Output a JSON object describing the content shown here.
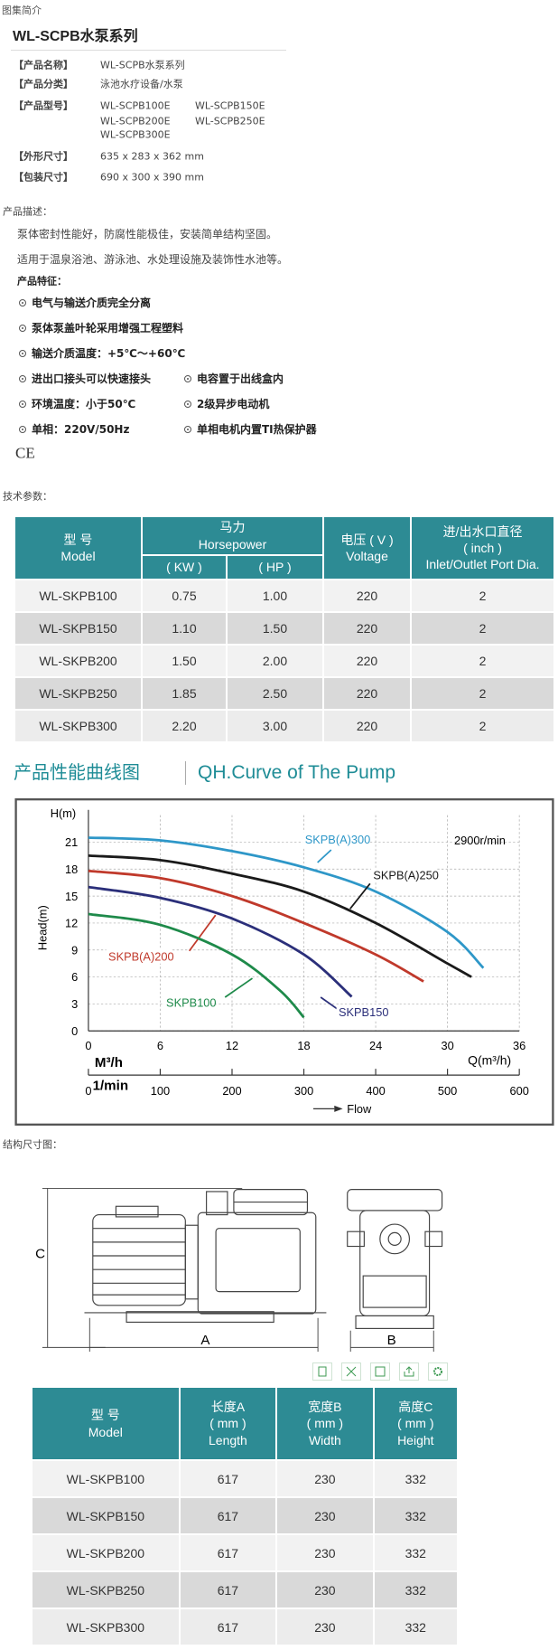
{
  "header": {
    "breadcrumb": "图集简介",
    "title": "WL-SCPB水泵系列"
  },
  "specs": [
    {
      "label": "【产品名称】",
      "values": [
        "WL-SCPB水泵系列"
      ]
    },
    {
      "label": "【产品分类】",
      "values": [
        "泳池水疗设备/水泵"
      ]
    },
    {
      "label": "【产品型号】",
      "values": [
        "WL-SCPB100E",
        "WL-SCPB150E",
        "WL-SCPB200E",
        "WL-SCPB250E",
        "WL-SCPB300E"
      ]
    },
    {
      "label": "【外形尺寸】",
      "values": [
        "635 x 283 x 362 mm"
      ]
    },
    {
      "label": "【包装尺寸】",
      "values": [
        "690 x 300 x 390 mm"
      ]
    }
  ],
  "description": {
    "title": "产品描述：",
    "lines": [
      "泵体密封性能好，防腐性能极佳，安装简单结构坚固。",
      "适用于温泉浴池、游泳池、水处理设施及装饰性水池等。"
    ]
  },
  "features": {
    "title": "产品特征：",
    "items": [
      "电气与输送介质完全分离",
      "泵体泵盖叶轮采用增强工程塑料",
      "输送介质温度：+5℃～+60℃",
      "进出口接头可以快速接头",
      "电容置于出线盒内",
      "环境温度：小于50℃",
      "2级异步电动机",
      "单相：220V/50Hz",
      "单相电机内置TI热保护器"
    ],
    "cert": "CE"
  },
  "tech_params": {
    "title": "技术参数：",
    "header": {
      "model": [
        "型 号",
        "Model"
      ],
      "power": [
        "马力",
        "Horsepower"
      ],
      "kw": "( KW )",
      "hp": "( HP )",
      "voltage": [
        "电压 ( V )",
        "Voltage"
      ],
      "port": [
        "进/出水口直径",
        "( inch )",
        "Inlet/Outlet Port Dia."
      ]
    },
    "rows": [
      [
        "WL-SKPB100",
        "0.75",
        "1.00",
        "220",
        "2"
      ],
      [
        "WL-SKPB150",
        "1.10",
        "1.50",
        "220",
        "2"
      ],
      [
        "WL-SKPB200",
        "1.50",
        "2.00",
        "220",
        "2"
      ],
      [
        "WL-SKPB250",
        "1.85",
        "2.50",
        "220",
        "2"
      ],
      [
        "WL-SKPB300",
        "2.20",
        "3.00",
        "220",
        "2"
      ]
    ]
  },
  "curve": {
    "title": "产品性能曲线图",
    "subtitle": "QH.Curve of The Pump"
  },
  "chart_data": {
    "type": "line",
    "y_label": "H(m)",
    "y_title": "Head(m)",
    "x_label": "Q(m³/h)",
    "x_unit": "M³/h",
    "x2_unit": "1/min",
    "x2_title": "Flow",
    "annotation": "2900r/min",
    "xlim": [
      0,
      36
    ],
    "xticks": [
      0,
      6,
      12,
      18,
      24,
      30,
      36
    ],
    "ylim": [
      0,
      24
    ],
    "yticks": [
      0,
      3,
      6,
      9,
      12,
      15,
      18,
      21
    ],
    "x2lim": [
      0,
      600
    ],
    "x2ticks": [
      0,
      100,
      200,
      300,
      400,
      500,
      600
    ],
    "grid": true,
    "series": [
      {
        "name": "SKPB(A)300",
        "color": "#2e97c8",
        "x": [
          0,
          6,
          12,
          18,
          24,
          30,
          33
        ],
        "values": [
          21.5,
          21.2,
          20,
          18.2,
          15.5,
          11,
          7
        ]
      },
      {
        "name": "SKPB(A)250",
        "color": "#1a1a1a",
        "x": [
          0,
          6,
          12,
          18,
          24,
          30,
          32
        ],
        "values": [
          19.5,
          19,
          17.5,
          15.5,
          12,
          7.5,
          6
        ]
      },
      {
        "name": "SKPB(A)200",
        "color": "#c0392b",
        "x": [
          0,
          6,
          12,
          18,
          24,
          28
        ],
        "values": [
          17.8,
          17,
          15,
          12,
          8.5,
          5.5
        ]
      },
      {
        "name": "SKPB150",
        "color": "#2b2f7a",
        "x": [
          0,
          6,
          12,
          18,
          22
        ],
        "values": [
          16,
          14.8,
          12.5,
          8.5,
          3.8
        ]
      },
      {
        "name": "SKPB100",
        "color": "#1e8a4a",
        "x": [
          0,
          6,
          12,
          16,
          18
        ],
        "values": [
          13,
          11.8,
          8.5,
          4.5,
          1.5
        ]
      }
    ]
  },
  "structure": {
    "title": "结构尺寸图：",
    "labels": [
      "A",
      "B",
      "C"
    ]
  },
  "dimensions": {
    "header": [
      [
        "型 号",
        "Model"
      ],
      [
        "长度A",
        "( mm )",
        "Length"
      ],
      [
        "宽度B",
        "( mm )",
        "Width"
      ],
      [
        "高度C",
        "( mm )",
        "Height"
      ]
    ],
    "rows": [
      [
        "WL-SKPB100",
        "617",
        "230",
        "332"
      ],
      [
        "WL-SKPB150",
        "617",
        "230",
        "332"
      ],
      [
        "WL-SKPB200",
        "617",
        "230",
        "332"
      ],
      [
        "WL-SKPB250",
        "617",
        "230",
        "332"
      ],
      [
        "WL-SKPB300",
        "617",
        "230",
        "332"
      ]
    ]
  }
}
